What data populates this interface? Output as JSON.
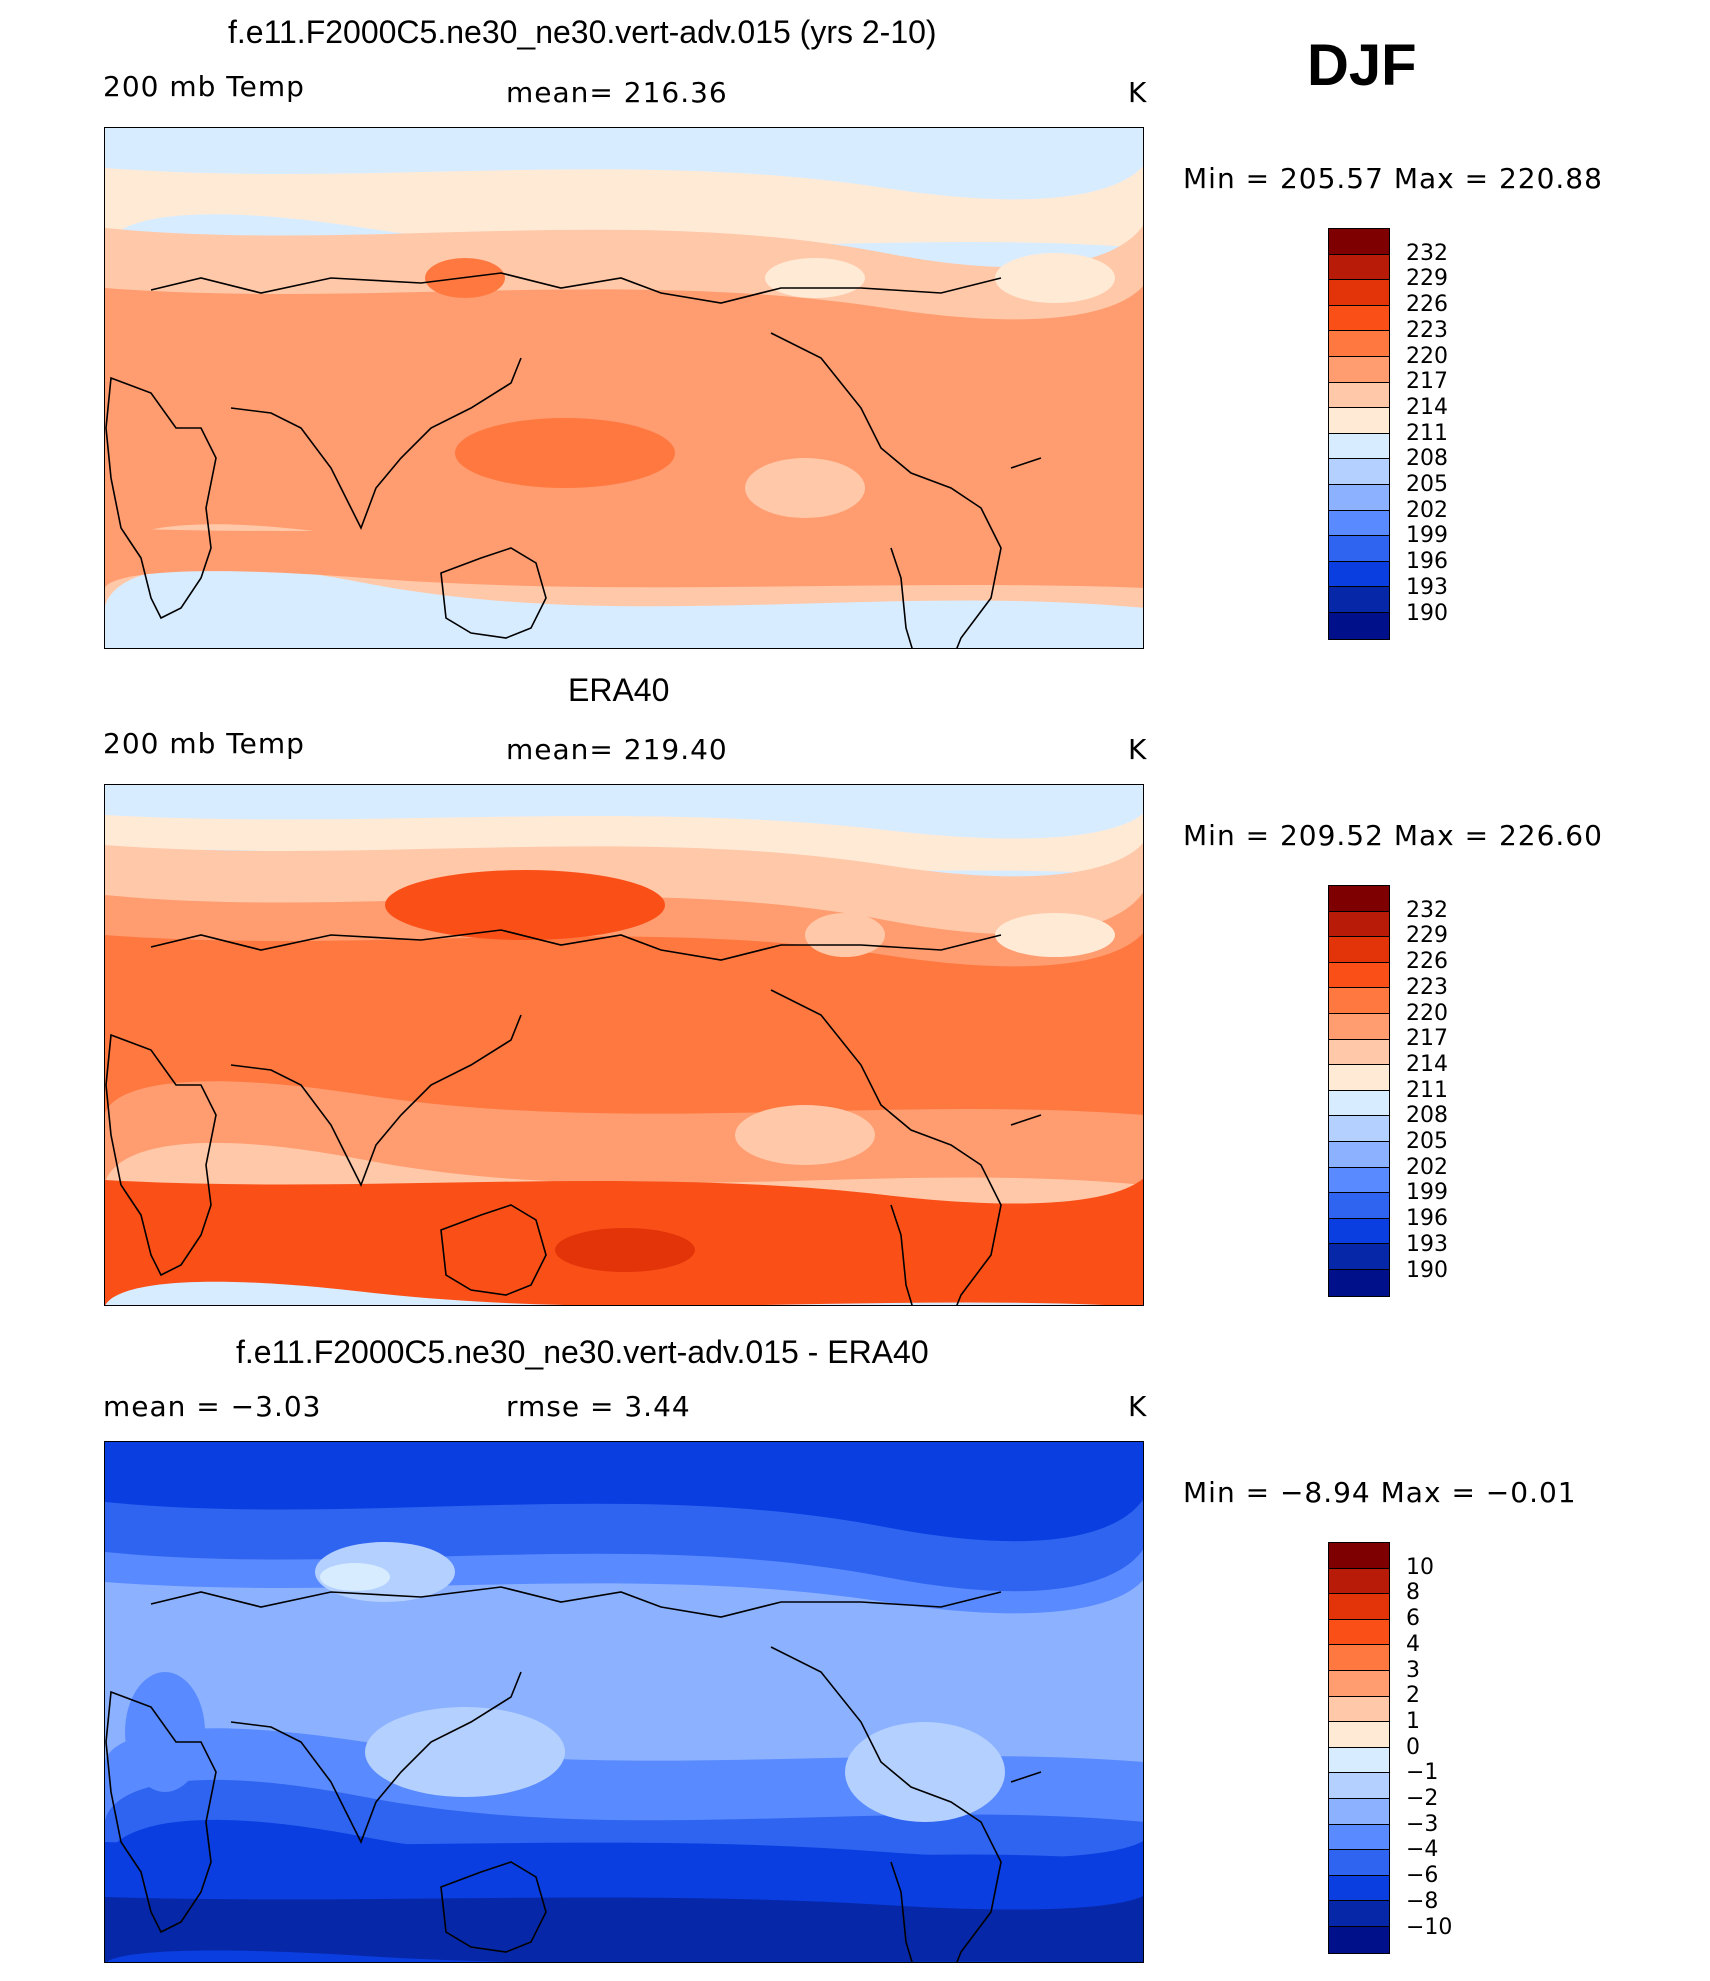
{
  "season": "DJF",
  "chart_data": [
    {
      "type": "heatmap",
      "title": "f.e11.F2000C5.ne30_ne30.vert-adv.015 (yrs 2-10)",
      "variable": "200 mb Temp",
      "stat_text": "mean=  216.36",
      "units": "K",
      "range_text": "Min  =  205.57  Max  =  220.88",
      "min": 205.57,
      "max": 220.88,
      "mean": 216.36,
      "colorbar_ticks": [
        "232",
        "229",
        "226",
        "223",
        "220",
        "217",
        "214",
        "211",
        "208",
        "205",
        "202",
        "199",
        "196",
        "193",
        "190"
      ]
    },
    {
      "type": "heatmap",
      "title": "ERA40",
      "variable": "200 mb Temp",
      "stat_text": "mean=  219.40",
      "units": "K",
      "range_text": "Min  =  209.52  Max  =  226.60",
      "min": 209.52,
      "max": 226.6,
      "mean": 219.4,
      "colorbar_ticks": [
        "232",
        "229",
        "226",
        "223",
        "220",
        "217",
        "214",
        "211",
        "208",
        "205",
        "202",
        "199",
        "196",
        "193",
        "190"
      ]
    },
    {
      "type": "heatmap",
      "title": "f.e11.F2000C5.ne30_ne30.vert-adv.015 - ERA40",
      "variable": "mean  =    −3.03",
      "stat_text": "rmse  =     3.44",
      "units": "K",
      "range_text": "Min  =    −8.94  Max  =   −0.01",
      "min": -8.94,
      "max": -0.01,
      "mean": -3.03,
      "rmse": 3.44,
      "colorbar_ticks": [
        "10",
        "8",
        "6",
        "4",
        "3",
        "2",
        "1",
        "0",
        "−1",
        "−2",
        "−3",
        "−4",
        "−6",
        "−8",
        "−10"
      ]
    }
  ],
  "colorbar_colors": [
    "#7f0000",
    "#b81c08",
    "#e23408",
    "#fa5018",
    "#ff7840",
    "#ff9c70",
    "#ffc8a8",
    "#ffead6",
    "#d8ecff",
    "#b4d0ff",
    "#8cb2ff",
    "#5a8aff",
    "#2e64f0",
    "#0a3ee0",
    "#0628a8",
    "#00108a"
  ],
  "map_palettes": {
    "model": [
      "#d8ecff",
      "#ffead6",
      "#ffc8a8",
      "#ff9c70",
      "#ff7840",
      "#fa5018"
    ],
    "obs": [
      "#d8ecff",
      "#ffead6",
      "#ffc8a8",
      "#ff9c70",
      "#ff7840",
      "#fa5018",
      "#e23408",
      "#b81c08"
    ],
    "diff": [
      "#0628a8",
      "#0a3ee0",
      "#2e64f0",
      "#5a8aff",
      "#8cb2ff",
      "#b4d0ff",
      "#d8ecff"
    ]
  }
}
